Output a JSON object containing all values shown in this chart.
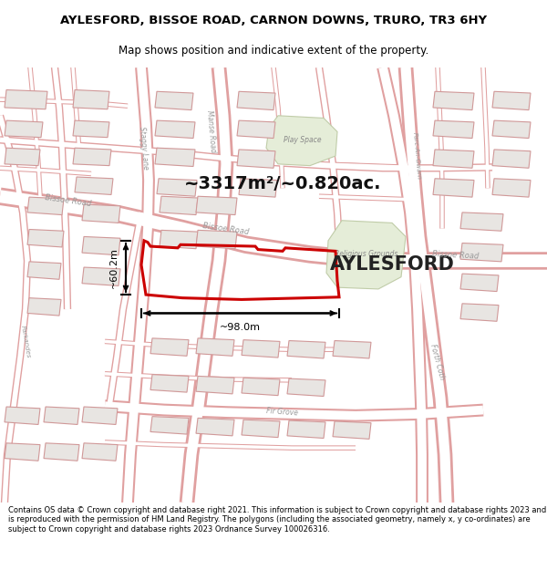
{
  "title_line1": "AYLESFORD, BISSOE ROAD, CARNON DOWNS, TRURO, TR3 6HY",
  "title_line2": "Map shows position and indicative extent of the property.",
  "area_text": "~3317m²/~0.820ac.",
  "property_label": "AYLESFORD",
  "sublabel": "Religious Grounds",
  "play_space_label": "Play Space",
  "dim_horizontal": "~98.0m",
  "dim_vertical": "~60.2m",
  "footer_text": "Contains OS data © Crown copyright and database right 2021. This information is subject to Crown copyright and database rights 2023 and is reproduced with the permission of HM Land Registry. The polygons (including the associated geometry, namely x, y co-ordinates) are subject to Crown copyright and database rights 2023 Ordnance Survey 100026316.",
  "bg_color": "#ffffff",
  "road_stroke": "#e8aaaa",
  "road_fill": "#f5f5f5",
  "building_fill": "#e8e8e8",
  "building_stroke": "#d0a0a0",
  "property_fill": "none",
  "property_stroke": "#dd0000",
  "green_fill": "#e8f0e0",
  "green_stroke": "#c8d8b8",
  "label_road_color": "#aaaaaa",
  "bissoe_road_label": "Bissoe Road",
  "manse_road_label": "Manse Road",
  "parc_label": "Parc-An-Gwarn",
  "staggy_label": "Staggy Lane",
  "fir_grove_label": "Fir Grove",
  "forth_coth_label": "Forth Coth",
  "parkandes_label": "Parkandes"
}
